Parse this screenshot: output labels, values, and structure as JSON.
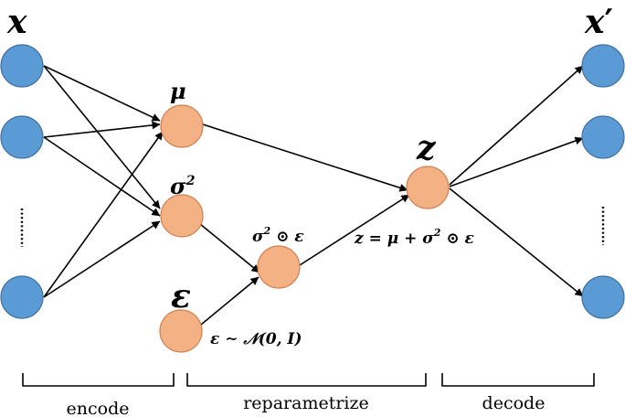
{
  "labels": {
    "input": "x",
    "mu": "μ",
    "sigma_base": "σ",
    "sigma_exp": "2",
    "epsilon": "ε",
    "z": "z",
    "output_base": "x",
    "output_prime": "′",
    "sigma_eps_base": "σ",
    "sigma_eps_exp": "2",
    "sigma_eps_rest": " ⊙ ε",
    "eps_dist": "ε ∼ 𝒩(0, I)",
    "z_formula_a": "z = μ + σ",
    "z_formula_exp": "2",
    "z_formula_b": " ⊙ ε"
  },
  "phases": {
    "encode": "encode",
    "reparametrize": "reparametrize",
    "decode": "decode"
  },
  "colors": {
    "input_output_nodes": "#5b9bd5",
    "latent_nodes": "#f4b183"
  }
}
